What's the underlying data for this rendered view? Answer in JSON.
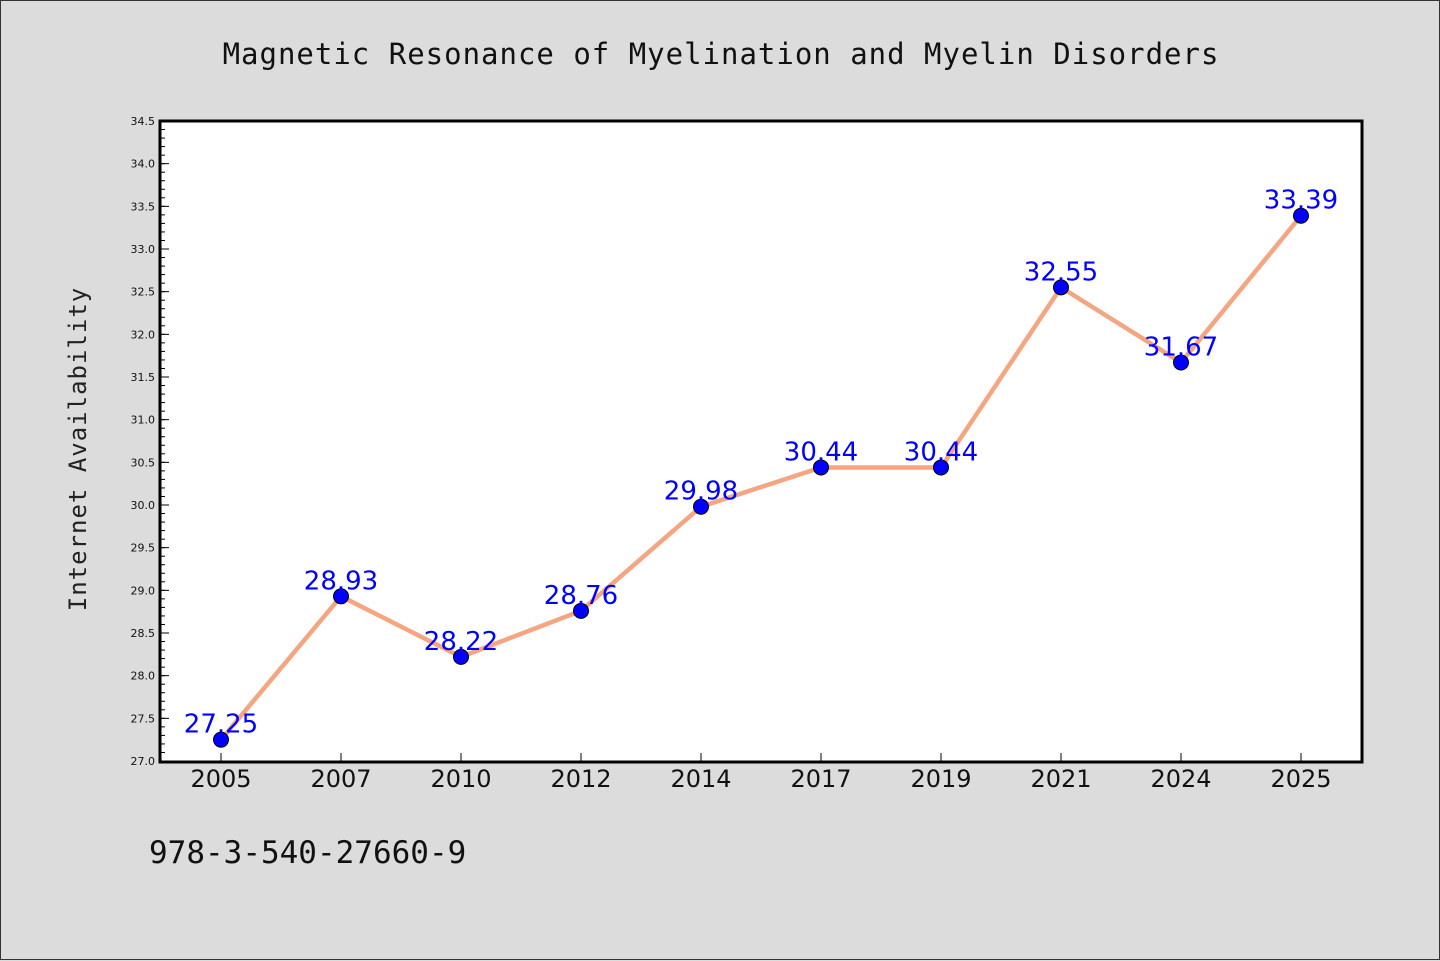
{
  "chart_data": {
    "type": "line",
    "title": "Magnetic Resonance of Myelination and Myelin Disorders",
    "xlabel": "",
    "ylabel": "Internet Availability",
    "categories": [
      "2005",
      "2007",
      "2010",
      "2012",
      "2014",
      "2017",
      "2019",
      "2021",
      "2024",
      "2025"
    ],
    "series": [
      {
        "values": [
          27.25,
          28.93,
          28.22,
          28.76,
          29.98,
          30.44,
          30.44,
          32.55,
          31.67,
          33.39
        ],
        "line_color": "#f4a582",
        "marker_color": "#0000ff"
      }
    ],
    "data_labels": [
      "27.25",
      "28.93",
      "28.22",
      "28.76",
      "29.98",
      "30.44",
      "30.44",
      "32.55",
      "31.67",
      "33.39"
    ],
    "label_color": "#0000ff",
    "ylim": [
      27.0,
      34.5
    ],
    "yticks": [
      "27.0",
      "27.5",
      "28.0",
      "28.5",
      "29.0",
      "29.5",
      "30.0",
      "30.5",
      "31.0",
      "31.5",
      "32.0",
      "32.5",
      "33.0",
      "33.5",
      "34.0",
      "34.5"
    ],
    "grid": false,
    "legend": "none"
  },
  "footnote": "978-3-540-27660-9",
  "colors": {
    "background": "#dcdcdc",
    "plot_background": "#ffffff",
    "axes": "#000000"
  }
}
